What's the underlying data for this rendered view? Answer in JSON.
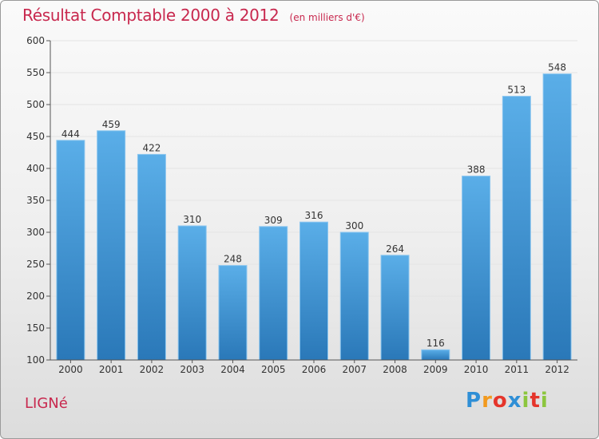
{
  "header": {
    "title": "Résultat Comptable 2000 à 2012",
    "unit": "(en milliers d'€)"
  },
  "footer": {
    "commune": "LIGNé"
  },
  "logo": {
    "text": "Proxiti",
    "letters": [
      "P",
      "r",
      "o",
      "x",
      "i",
      "t",
      "i"
    ],
    "colors": [
      "#2f8fd6",
      "#f29a1e",
      "#e5352b",
      "#2f8fd6",
      "#8cc63e",
      "#e5352b",
      "#8cc63e"
    ]
  },
  "colors": {
    "title": "#c8284e",
    "bar_light": "#5aaee8",
    "bar_dark": "#2a78b8",
    "axis": "#555555",
    "grid": "#e4e4e4"
  },
  "chart_data": {
    "type": "bar",
    "title": "Résultat Comptable 2000 à 2012",
    "ylabel": "",
    "xlabel": "",
    "categories": [
      "2000",
      "2001",
      "2002",
      "2003",
      "2004",
      "2005",
      "2006",
      "2007",
      "2008",
      "2009",
      "2010",
      "2011",
      "2012"
    ],
    "values": [
      444,
      459,
      422,
      310,
      248,
      309,
      316,
      300,
      264,
      116,
      388,
      513,
      548
    ],
    "ylim": [
      100,
      600
    ],
    "yticks": [
      100,
      150,
      200,
      250,
      300,
      350,
      400,
      450,
      500,
      550,
      600
    ],
    "grid": true
  }
}
